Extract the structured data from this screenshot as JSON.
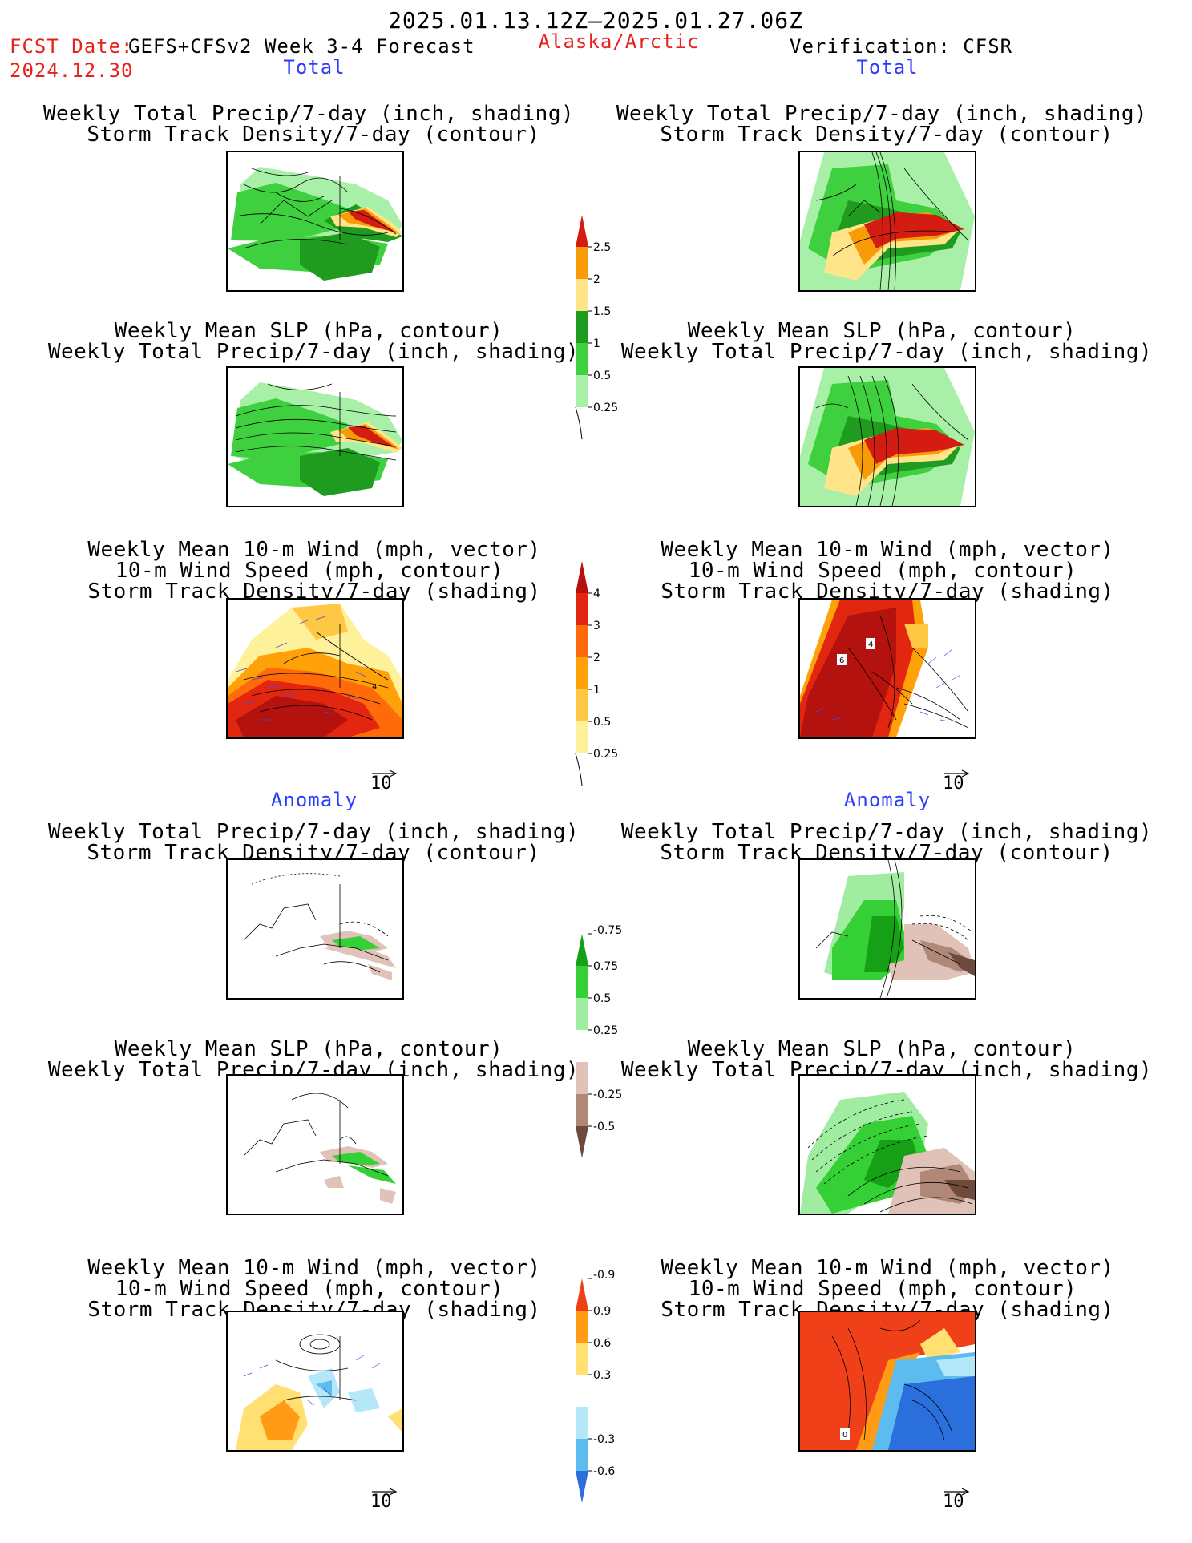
{
  "header": {
    "date_range": "2025.01.13.12Z–2025.01.27.06Z",
    "fcst_label": "FCST Date:",
    "model_label": "GEFS+CFSv2 Week 3-4 Forecast",
    "region": "Alaska/Arctic",
    "verification": "Verification: CFSR",
    "fcst_date": "2024.12.30"
  },
  "sections": {
    "total_left": "Total",
    "total_right": "Total",
    "anomaly_left": "Anomaly",
    "anomaly_right": "Anomaly"
  },
  "titles": {
    "precip_storm": [
      "Weekly Total Precip/7-day (inch, shading)",
      "Storm Track Density/7-day (contour)"
    ],
    "slp_precip": [
      "Weekly Mean SLP (hPa, contour)",
      "Weekly Total Precip/7-day (inch, shading)"
    ],
    "wind_storm": [
      "Weekly Mean 10-m Wind (mph, vector)",
      "10-m Wind Speed (mph, contour)",
      "Storm Track Density/7-day (shading)"
    ]
  },
  "vector_ref": "10",
  "colorbars": {
    "precip_total": {
      "labels": [
        "2.5",
        "2",
        "1.5",
        "1",
        "0.5",
        "0.25"
      ],
      "colors": [
        "#d41c12",
        "#f79b06",
        "#ffe48a",
        "#1f9c1f",
        "#3fd03f",
        "#a8f0a8"
      ]
    },
    "storm_total": {
      "labels": [
        "4",
        "3",
        "2",
        "1",
        "0.5",
        "0.25"
      ],
      "colors": [
        "#b3120e",
        "#e3260f",
        "#ff6a0a",
        "#ffa20a",
        "#ffc844",
        "#fff09a"
      ]
    },
    "precip_anom": {
      "labels": [
        "0.75",
        "0.5",
        "0.25",
        "-0.25",
        "-0.5",
        "-0.75"
      ],
      "colors": [
        "#15a015",
        "#35d035",
        "#a0eca0",
        "#ffffff",
        "#e0c2b8",
        "#b08878",
        "#6e4a3c"
      ]
    },
    "storm_anom": {
      "labels": [
        "0.9",
        "0.6",
        "0.3",
        "-0.3",
        "-0.6",
        "-0.9"
      ],
      "colors": [
        "#f0401a",
        "#ff9b14",
        "#ffe070",
        "#ffffff",
        "#b4e8f8",
        "#5cbcf0",
        "#2a6fdc"
      ]
    }
  },
  "map_labels": {
    "left_wind_total": "4",
    "right_wind_total_a": "4",
    "right_wind_total_b": "6",
    "right_wind_anom": "0"
  },
  "colors": {
    "title_red": "#e8211d",
    "section_blue": "#2a3cff"
  }
}
